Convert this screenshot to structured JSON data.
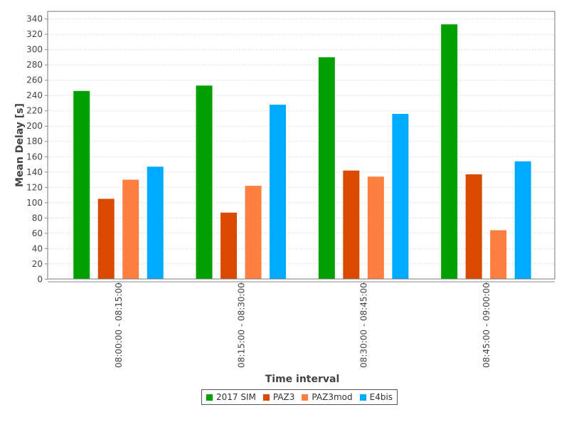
{
  "chart_data": {
    "type": "bar",
    "title": "",
    "xlabel": "Time interval",
    "ylabel": "Mean Delay [s]",
    "ylim": [
      0,
      340
    ],
    "yticks": [
      0,
      20,
      40,
      60,
      80,
      100,
      120,
      140,
      160,
      180,
      200,
      220,
      240,
      260,
      280,
      300,
      320,
      340
    ],
    "grid": true,
    "legend_position": "bottom",
    "categories": [
      "08:00:00 - 08:15:00",
      "08:15:00 - 08:30:00",
      "08:30:00 - 08:45:00",
      "08:45:00 - 09:00:00"
    ],
    "series": [
      {
        "name": "2017 SIM",
        "color": "#00a000",
        "values": [
          246,
          253,
          290,
          333
        ]
      },
      {
        "name": "PAZ3",
        "color": "#d94a00",
        "values": [
          105,
          87,
          142,
          137
        ]
      },
      {
        "name": "PAZ3mod",
        "color": "#ff7f40",
        "values": [
          130,
          122,
          134,
          64
        ]
      },
      {
        "name": "E4bis",
        "color": "#00aaff",
        "values": [
          147,
          228,
          216,
          154
        ]
      }
    ]
  }
}
